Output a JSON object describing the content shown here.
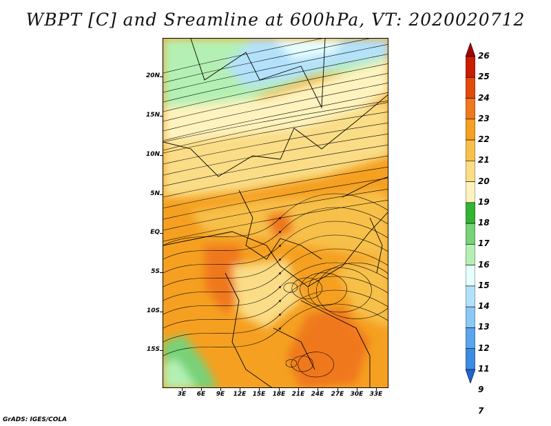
{
  "title": "WBPT [C] and Sreamline at 600hPa, VT: 2020020712",
  "footer": "GrADS: IGES/COLA",
  "lat_labels": [
    "20N",
    "15N",
    "10N",
    "5N",
    "EQ",
    "5S",
    "10S",
    "15S"
  ],
  "lon_labels": [
    "3E",
    "6E",
    "9E",
    "12E",
    "15E",
    "18E",
    "21E",
    "24E",
    "27E",
    "30E",
    "33E"
  ],
  "colorbar": {
    "labels": [
      "26",
      "25",
      "24",
      "23",
      "22",
      "21",
      "20",
      "19",
      "18",
      "17",
      "16",
      "15",
      "14",
      "13",
      "12",
      "11",
      "9",
      "7"
    ],
    "colors": [
      "#a50000",
      "#c81e00",
      "#e14b0a",
      "#f0781e",
      "#f5a021",
      "#f7c04a",
      "#fadd86",
      "#fef3be",
      "#32b432",
      "#78d278",
      "#b4f0b4",
      "#e6ffff",
      "#b4e1fa",
      "#8cc8f5",
      "#5aa5eb",
      "#3c8ce1",
      "#1e64d2"
    ]
  },
  "map": {
    "field": "WBPT",
    "units": "C",
    "level": "600hPa"
  }
}
